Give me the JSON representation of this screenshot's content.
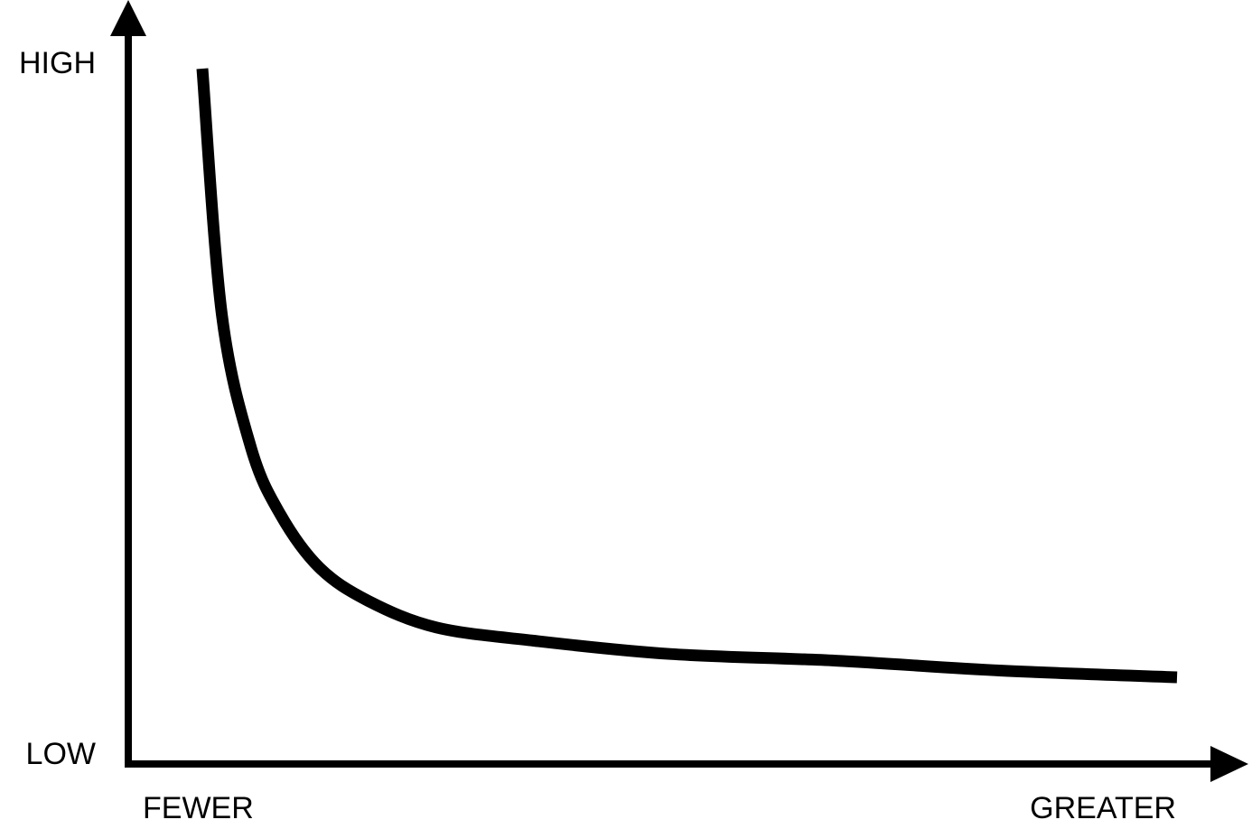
{
  "chart_data": {
    "type": "line",
    "title": "",
    "xlabel": "",
    "ylabel": "",
    "x_ticks": {
      "start": "FEWER",
      "end": "GREATER"
    },
    "y_ticks": {
      "top": "HIGH",
      "bottom": "LOW"
    },
    "xlim": [
      0,
      1
    ],
    "ylim": [
      0,
      1
    ],
    "grid": false,
    "legend": "none",
    "series": [
      {
        "x": [
          0.0,
          0.02,
          0.05,
          0.08,
          0.12,
          0.17,
          0.24,
          0.34,
          0.48,
          0.65,
          0.82,
          1.0
        ],
        "y": [
          1.0,
          0.63,
          0.43,
          0.33,
          0.25,
          0.2,
          0.16,
          0.14,
          0.12,
          0.11,
          0.095,
          0.085
        ]
      }
    ],
    "colors": {
      "axis": "#000000",
      "line": "#000000"
    }
  }
}
